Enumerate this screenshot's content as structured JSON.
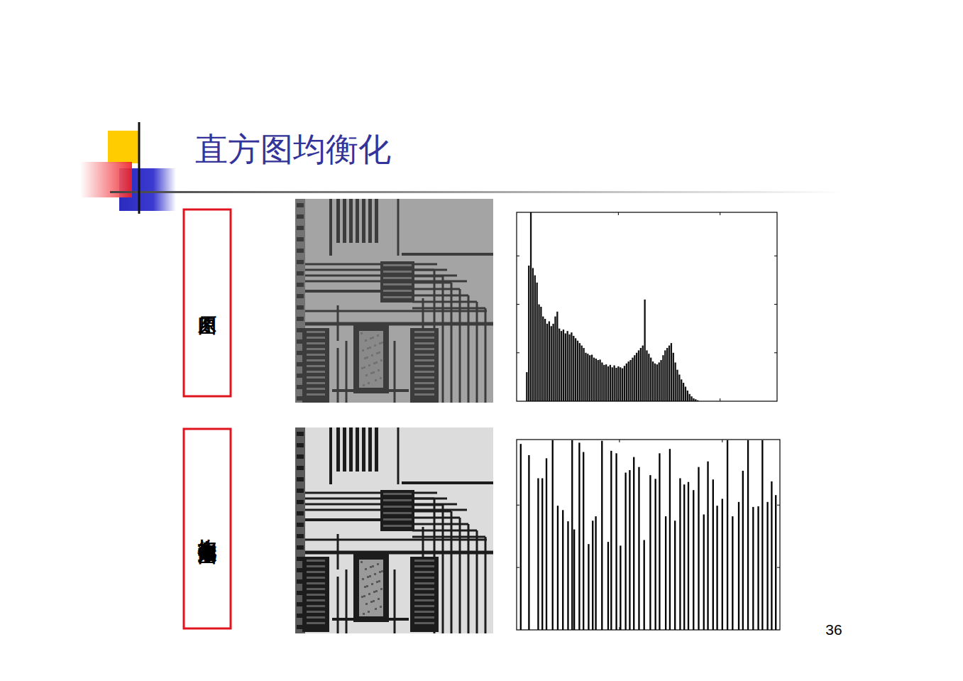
{
  "title": "直方图均衡化",
  "page_number": 36,
  "panels": [
    {
      "label": "原图"
    },
    {
      "label": "均衡化后效果图"
    }
  ],
  "chart_data": [
    {
      "type": "bar",
      "x": [
        10,
        12,
        14,
        16,
        18,
        20,
        22,
        24,
        26,
        28,
        30,
        32,
        34,
        36,
        38,
        40,
        42,
        44,
        46,
        48,
        50,
        52,
        54,
        56,
        58,
        60,
        62,
        64,
        66,
        68,
        70,
        72,
        74,
        76,
        78,
        80,
        82,
        84,
        86,
        88,
        90,
        92,
        94,
        96,
        98,
        100,
        102,
        104,
        106,
        108,
        110,
        112,
        114,
        116,
        118,
        120,
        122,
        124,
        126,
        128,
        130,
        132,
        134,
        136,
        138,
        140,
        142,
        144,
        146,
        148,
        150,
        152,
        154,
        156,
        158,
        160,
        162,
        164,
        166,
        168,
        170,
        172,
        174,
        176,
        178
      ],
      "values": [
        600,
        2800,
        3900,
        2750,
        2600,
        2450,
        2000,
        1950,
        1750,
        1700,
        1600,
        1650,
        1550,
        1600,
        1750,
        1850,
        1500,
        1450,
        1480,
        1400,
        1450,
        1380,
        1420,
        1350,
        1300,
        1250,
        1200,
        1150,
        1100,
        1000,
        980,
        950,
        960,
        900,
        880,
        850,
        860,
        800,
        750,
        760,
        720,
        750,
        700,
        740,
        690,
        720,
        700,
        680,
        730,
        780,
        820,
        850,
        900,
        950,
        1000,
        1050,
        1100,
        1150,
        2100,
        1050,
        980,
        900,
        820,
        780,
        760,
        800,
        850,
        950,
        1050,
        1100,
        1150,
        1200,
        1000,
        800,
        650,
        550,
        450,
        380,
        300,
        220,
        150,
        100,
        60,
        40,
        20
      ],
      "color": "#111111",
      "xlim": [
        0,
        256
      ],
      "ylim": [
        0,
        3900
      ],
      "xticks": [
        100,
        200
      ],
      "yticks": [
        1000,
        2000,
        3000
      ],
      "tick_labels": false
    },
    {
      "type": "bar",
      "x": [
        4,
        12,
        21,
        25,
        29,
        35,
        40,
        45,
        50,
        54,
        56,
        61,
        65,
        70,
        74,
        77,
        83,
        89,
        92,
        97,
        101,
        106,
        110,
        114,
        119,
        124,
        130,
        135,
        139,
        145,
        149,
        154,
        159,
        163,
        167,
        172,
        177,
        182,
        186,
        191,
        195,
        200,
        205,
        210,
        216,
        220,
        225,
        230,
        235,
        239,
        244,
        248,
        252
      ],
      "values": [
        2980,
        2800,
        2430,
        2430,
        2750,
        3040,
        1990,
        1920,
        1740,
        3040,
        1610,
        3000,
        2850,
        1375,
        1750,
        1820,
        3030,
        1410,
        2870,
        2830,
        1350,
        2520,
        2560,
        2770,
        2610,
        1440,
        2480,
        2420,
        2830,
        1820,
        2900,
        1750,
        2430,
        2330,
        2370,
        2240,
        2610,
        1850,
        2700,
        2410,
        1990,
        2100,
        3040,
        1820,
        2050,
        2550,
        3040,
        1970,
        1980,
        3040,
        2050,
        2380,
        2160
      ],
      "color": "#000000",
      "xlim": [
        0,
        256
      ],
      "ylim": [
        0,
        3050
      ],
      "xticks": [
        100,
        200
      ],
      "yticks": [
        1000,
        2000
      ],
      "tick_labels": false
    }
  ]
}
